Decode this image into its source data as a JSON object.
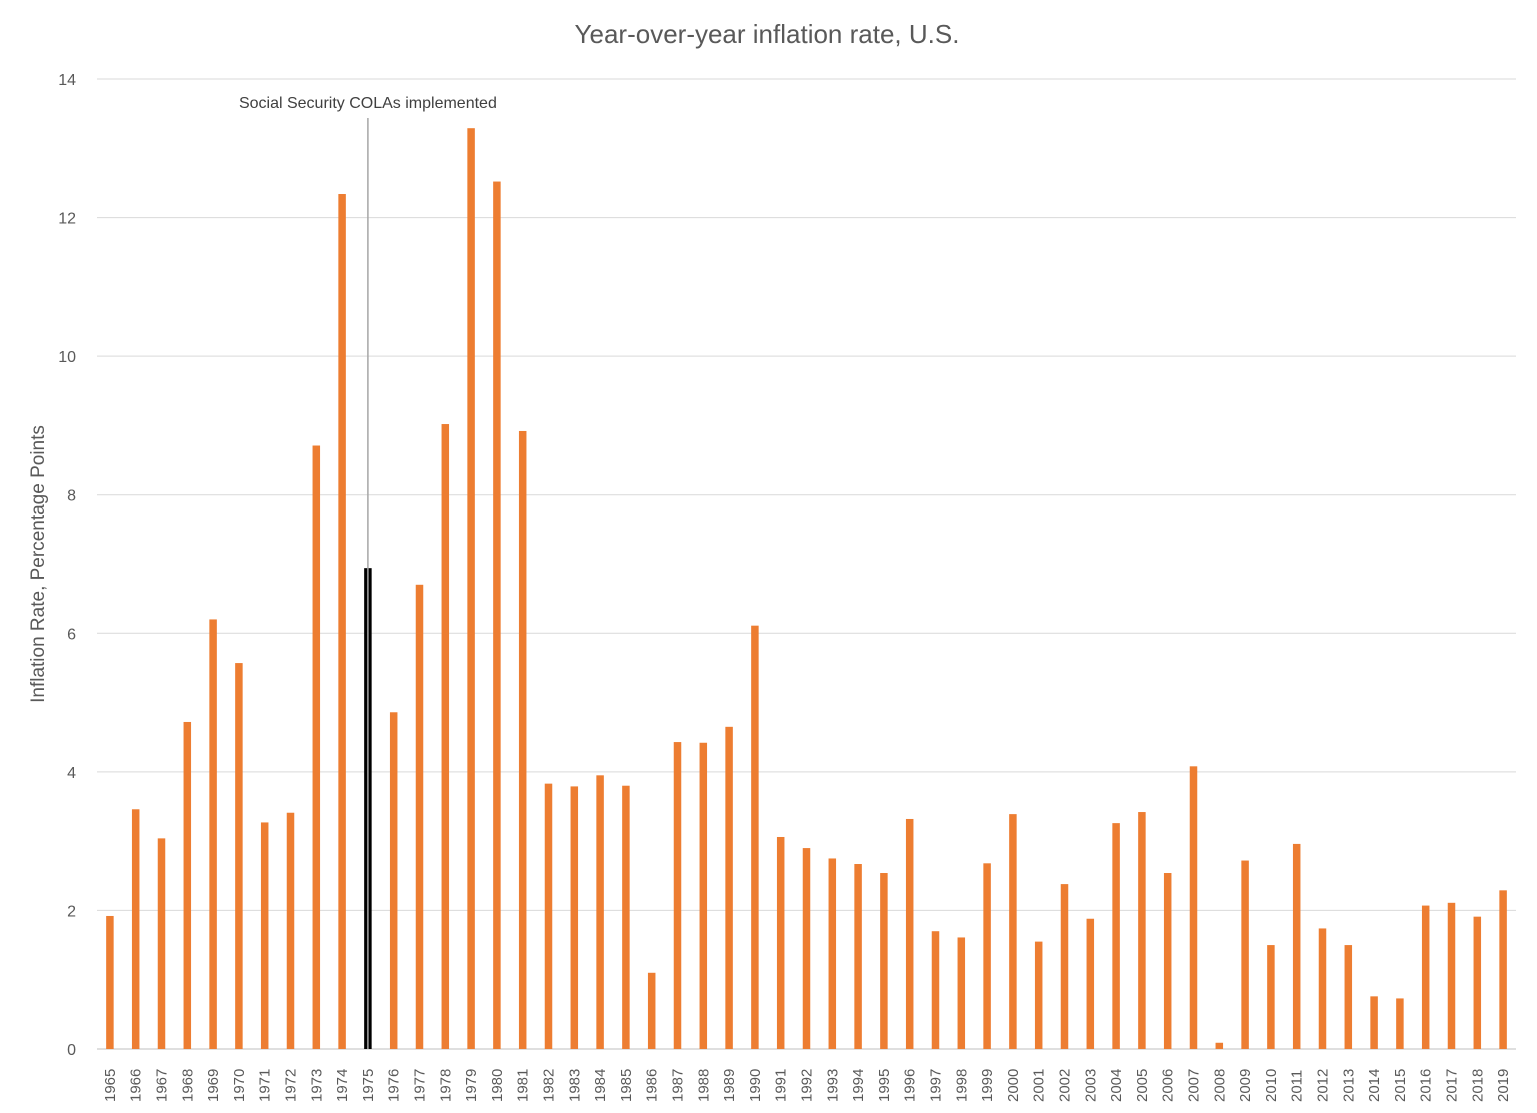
{
  "chart_data": {
    "type": "bar",
    "title": "Year-over-year inflation rate, U.S.",
    "xlabel": "",
    "ylabel": "Inflation Rate, Percentage Points",
    "ylim": [
      0,
      14
    ],
    "yticks": [
      0,
      2,
      4,
      6,
      8,
      10,
      12,
      14
    ],
    "grid": true,
    "legend": "none",
    "categories": [
      "1965",
      "1966",
      "1967",
      "1968",
      "1969",
      "1970",
      "1971",
      "1972",
      "1973",
      "1974",
      "1975",
      "1976",
      "1977",
      "1978",
      "1979",
      "1980",
      "1981",
      "1982",
      "1983",
      "1984",
      "1985",
      "1986",
      "1987",
      "1988",
      "1989",
      "1990",
      "1991",
      "1992",
      "1993",
      "1994",
      "1995",
      "1996",
      "1997",
      "1998",
      "1999",
      "2000",
      "2001",
      "2002",
      "2003",
      "2004",
      "2005",
      "2006",
      "2007",
      "2008",
      "2009",
      "2010",
      "2011",
      "2012",
      "2013",
      "2014",
      "2015",
      "2016",
      "2017",
      "2018",
      "2019"
    ],
    "values": [
      1.92,
      3.46,
      3.04,
      4.72,
      6.2,
      5.57,
      3.27,
      3.41,
      8.71,
      12.34,
      6.94,
      4.86,
      6.7,
      9.02,
      13.29,
      12.52,
      8.92,
      3.83,
      3.79,
      3.95,
      3.8,
      1.1,
      4.43,
      4.42,
      4.65,
      6.11,
      3.06,
      2.9,
      2.75,
      2.67,
      2.54,
      3.32,
      1.7,
      1.61,
      2.68,
      3.39,
      1.55,
      2.38,
      1.88,
      3.26,
      3.42,
      2.54,
      4.08,
      0.09,
      2.72,
      1.5,
      2.96,
      1.74,
      1.5,
      0.76,
      0.73,
      2.07,
      2.11,
      1.91,
      2.29
    ],
    "colors": {
      "bar": "#ed7d31",
      "highlight": "#000000"
    },
    "highlight_category": "1975",
    "annotation": {
      "text": "Social Security COLAs implemented",
      "category": "1975"
    }
  }
}
